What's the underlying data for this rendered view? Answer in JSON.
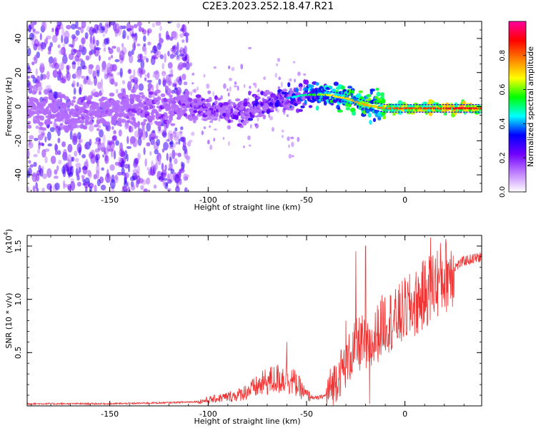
{
  "title": "C2E3.2023.252.18.47.R21",
  "chart_data": [
    {
      "type": "heatmap",
      "xlabel": "Height of straight line (km)",
      "ylabel": "Frequency (Hz)",
      "xlim": [
        -192,
        39
      ],
      "ylim": [
        -50,
        50
      ],
      "x_ticks": [
        -150,
        -100,
        -50,
        0
      ],
      "x_tick_labels": [
        "-150",
        "-100",
        "-50",
        "0"
      ],
      "y_ticks": [
        -40,
        -20,
        0,
        20,
        40
      ],
      "y_tick_labels": [
        "-40",
        "-20",
        "0",
        "20",
        "40"
      ],
      "colorbar": {
        "label": "Normalized spectral amplitude",
        "range": [
          0.0,
          1.0
        ],
        "ticks": [
          0.0,
          0.2,
          0.4,
          0.6,
          0.8
        ],
        "tick_labels": [
          "0.0",
          "0.2",
          "0.4",
          "0.6",
          "0.8"
        ],
        "colors": [
          "#ffffff",
          "#c080ff",
          "#7000ff",
          "#0000ff",
          "#00ffff",
          "#00ff00",
          "#ffff00",
          "#ff8000",
          "#ff0000",
          "#ff00a0"
        ]
      },
      "ridge": {
        "x": [
          -192,
          -170,
          -150,
          -130,
          -110,
          -100,
          -90,
          -80,
          -70,
          -60,
          -50,
          -40,
          -30,
          -20,
          -15,
          -10,
          0,
          10,
          20,
          39
        ],
        "frequency": [
          -2,
          -3,
          -2,
          -1,
          0,
          -1,
          -3,
          -2,
          2,
          5,
          7,
          7,
          5,
          1,
          0,
          -1,
          -1,
          -1,
          -1,
          -1
        ],
        "amplitude": [
          0.15,
          0.2,
          0.2,
          0.25,
          0.25,
          0.3,
          0.3,
          0.35,
          0.35,
          0.4,
          0.5,
          0.65,
          0.7,
          0.75,
          0.7,
          0.8,
          0.85,
          0.85,
          0.9,
          0.9
        ]
      },
      "noise_region_x": [
        -192,
        -110
      ],
      "grid": false
    },
    {
      "type": "line",
      "xlabel": "Height of straight line (km)",
      "ylabel": "SNR (10 * v/v)",
      "y_multiplier_label": "(x10",
      "y_multiplier_exp": "4",
      "y_multiplier_close": ")",
      "xlim": [
        -192,
        39
      ],
      "ylim": [
        0.0,
        1.6
      ],
      "x_ticks": [
        -150,
        -100,
        -50,
        0
      ],
      "x_tick_labels": [
        "-150",
        "-100",
        "-50",
        "0"
      ],
      "y_ticks": [
        0.5,
        1.0,
        1.5
      ],
      "y_tick_labels": [
        "0.5",
        "1.0",
        "1.5"
      ],
      "color": "#ee3333",
      "envelope": {
        "x": [
          -192,
          -150,
          -120,
          -105,
          -95,
          -85,
          -75,
          -70,
          -65,
          -60,
          -55,
          -50,
          -45,
          -40,
          -35,
          -30,
          -25,
          -22,
          -20,
          -18,
          -15,
          -10,
          -5,
          0,
          5,
          10,
          15,
          20,
          25,
          30,
          39
        ],
        "y": [
          0.02,
          0.02,
          0.03,
          0.04,
          0.07,
          0.1,
          0.18,
          0.23,
          0.25,
          0.27,
          0.2,
          0.1,
          0.07,
          0.1,
          0.25,
          0.4,
          0.55,
          0.6,
          0.55,
          0.5,
          0.65,
          0.8,
          0.8,
          0.9,
          0.95,
          1.05,
          1.15,
          1.22,
          1.3,
          1.36,
          1.4
        ]
      },
      "spikes": [
        {
          "x": -60,
          "y": 0.6
        },
        {
          "x": -30,
          "y": 0.8
        },
        {
          "x": -25,
          "y": 1.45
        },
        {
          "x": -20,
          "y": 1.5
        },
        {
          "x": -18,
          "y": 0.02
        },
        {
          "x": 13,
          "y": 1.58
        }
      ],
      "grid": false
    }
  ]
}
